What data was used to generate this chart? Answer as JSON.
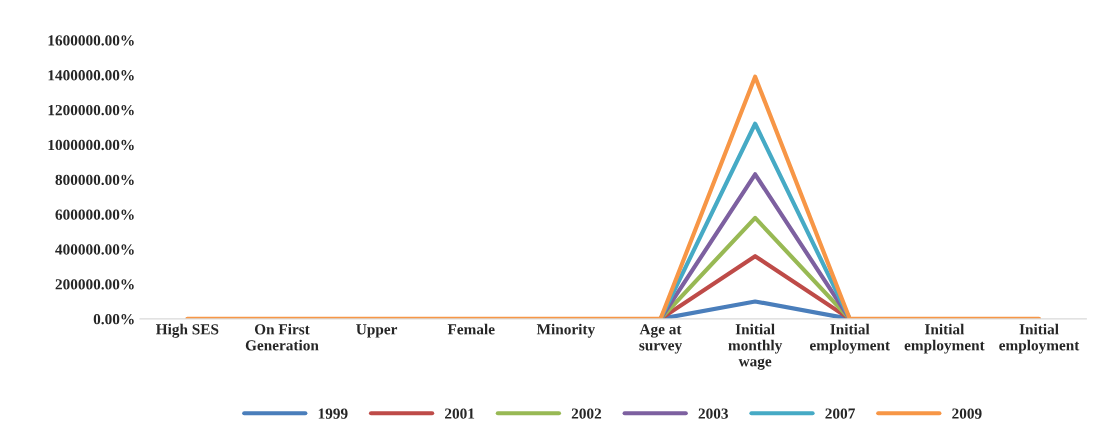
{
  "chart_data": {
    "type": "line",
    "categories": [
      "High SES",
      "On First\nGeneration",
      "Upper",
      "Female",
      "Minority",
      "Age at\nsurvey",
      "Initial\nmonthly\nwage",
      "Initial\nemployment",
      "Initial\nemployment",
      "Initial\nemployment"
    ],
    "series": [
      {
        "name": "1999",
        "color": "#4a7ebb",
        "values": [
          null,
          null,
          null,
          null,
          null,
          0,
          100000,
          0,
          null,
          null
        ]
      },
      {
        "name": "2001",
        "color": "#be4b48",
        "values": [
          null,
          null,
          null,
          null,
          null,
          0,
          360000,
          0,
          null,
          null
        ]
      },
      {
        "name": "2002",
        "color": "#98b954",
        "values": [
          null,
          null,
          null,
          null,
          null,
          0,
          580000,
          0,
          null,
          null
        ]
      },
      {
        "name": "2003",
        "color": "#7d60a0",
        "values": [
          null,
          null,
          null,
          null,
          null,
          0,
          830000,
          0,
          null,
          null
        ]
      },
      {
        "name": "2007",
        "color": "#46aac5",
        "values": [
          null,
          null,
          null,
          null,
          null,
          0,
          1120000,
          0,
          null,
          null
        ]
      },
      {
        "name": "2009",
        "color": "#f79646",
        "values": [
          0,
          0,
          0,
          0,
          0,
          0,
          1390000,
          0,
          0,
          0
        ]
      }
    ],
    "ylim": [
      0,
      1600000
    ],
    "yticks": [
      {
        "value": 0,
        "label": "0.00%"
      },
      {
        "value": 200000,
        "label": "200000.00%"
      },
      {
        "value": 400000,
        "label": "400000.00%"
      },
      {
        "value": 600000,
        "label": "600000.00%"
      },
      {
        "value": 800000,
        "label": "800000.00%"
      },
      {
        "value": 1000000,
        "label": "1000000.00%"
      },
      {
        "value": 1200000,
        "label": "1200000.00%"
      },
      {
        "value": 1400000,
        "label": "1400000.00%"
      },
      {
        "value": 1600000,
        "label": "1600000.00%"
      }
    ],
    "grid": false,
    "legend": "bottom",
    "marker": "none",
    "line_style": "solid"
  }
}
